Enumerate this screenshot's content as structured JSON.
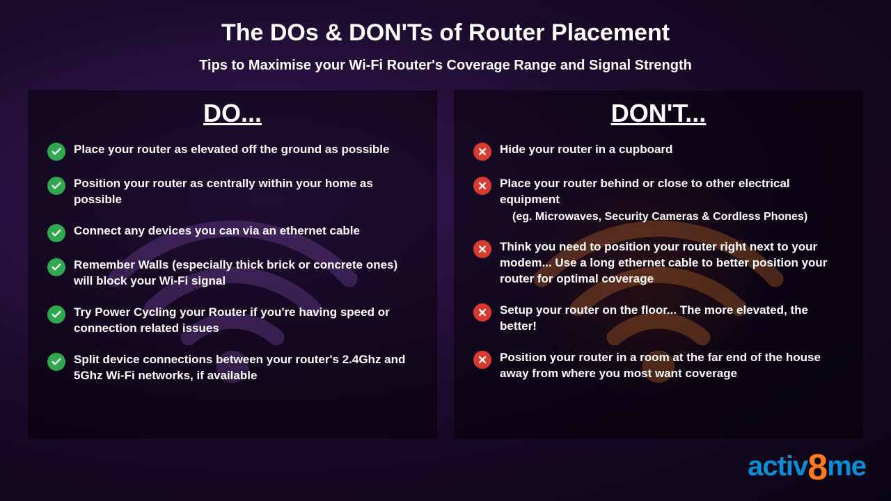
{
  "header": {
    "title": "The DOs & DON'Ts of Router Placement",
    "subtitle": "Tips to Maximise your Wi-Fi Router's Coverage Range and Signal Strength"
  },
  "do": {
    "heading": "DO...",
    "wifi_color": "#7a4aa8",
    "icon_bg": "#2fa84f",
    "items": [
      {
        "text": "Place your router as elevated off the ground as possible"
      },
      {
        "text": "Position your router as centrally within your home as possible"
      },
      {
        "text": "Connect any devices you can via an ethernet cable"
      },
      {
        "text": "Remember Walls (especially thick brick or concrete ones) will block your Wi-Fi signal"
      },
      {
        "text": "Try Power Cycling your Router if you're having speed or connection related issues"
      },
      {
        "text": "Split device connections between your router's 2.4Ghz and 5Ghz Wi-Fi networks, if available"
      }
    ]
  },
  "dont": {
    "heading": "DON'T...",
    "wifi_color": "#c06a2a",
    "icon_bg": "#d83a2f",
    "items": [
      {
        "text": "Hide your router in a cupboard"
      },
      {
        "text": "Place your router behind or close to other electrical equipment",
        "sub": "(eg. Microwaves, Security Cameras & Cordless Phones)"
      },
      {
        "text": "Think you need to position your router right next to your modem... Use a long ethernet cable to better position your router for optimal coverage"
      },
      {
        "text": "Setup your router on the floor... The more elevated, the better!"
      },
      {
        "text": "Position your router in a room at the far end of the house away from where you most want coverage"
      }
    ]
  },
  "logo": {
    "part1": "activ",
    "part2": "8",
    "part3": "me"
  },
  "colors": {
    "check_bg": "#2fa84f",
    "cross_bg": "#d83a2f",
    "logo_blue": "#0a8fd6",
    "logo_orange": "#ff7a1a"
  }
}
